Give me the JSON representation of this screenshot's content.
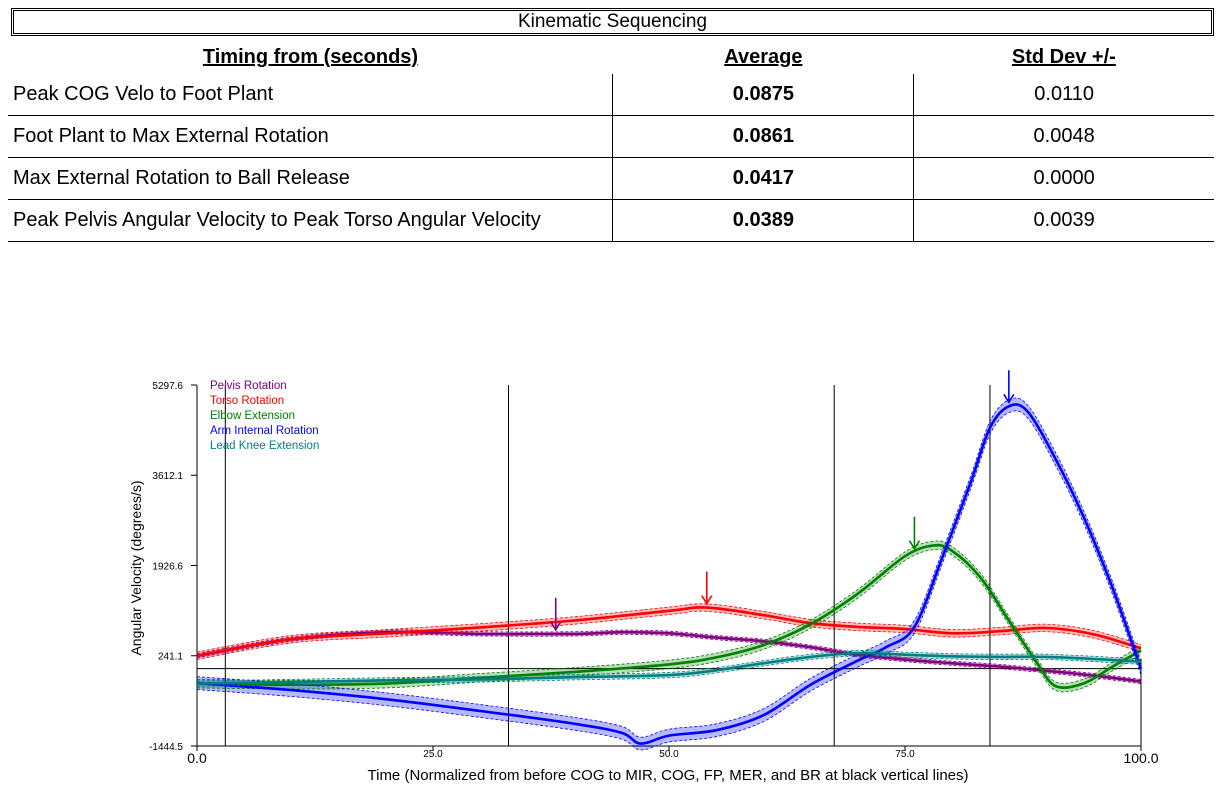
{
  "table": {
    "title": "Kinematic Sequencing",
    "headers": [
      "Timing from (seconds)",
      "Average",
      "Std Dev +/-"
    ],
    "rows": [
      {
        "label": "Peak COG Velo to Foot Plant",
        "average": "0.0875",
        "std": "0.0110"
      },
      {
        "label": "Foot Plant to Max External Rotation",
        "average": "0.0861",
        "std": "0.0048"
      },
      {
        "label": "Max External Rotation to Ball Release",
        "average": "0.0417",
        "std": "0.0000"
      },
      {
        "label": "Peak Pelvis Angular Velocity to Peak Torso Angular Velocity",
        "average": "0.0389",
        "std": "0.0039"
      }
    ]
  },
  "chart_data": {
    "type": "line",
    "xlabel": "Time (Normalized from before COG to MIR, COG, FP, MER, and BR at black vertical lines)",
    "ylabel": "Angular Velocity (degrees/s)",
    "xlim": [
      0,
      100
    ],
    "ylim": [
      -1444.5,
      5297.6
    ],
    "x_tick_labels": [
      "0.0",
      "25.0",
      "50.0",
      "75.0",
      "100.0"
    ],
    "x_tick_values": [
      0,
      25,
      50,
      75,
      100
    ],
    "y_tick_labels": [
      "5297.6",
      "3612.1",
      "1926.6",
      "241.1",
      "-1444.5"
    ],
    "y_tick_values": [
      5297.6,
      3612.1,
      1926.6,
      241.1,
      -1444.5
    ],
    "reference_hline": 0,
    "event_lines_x": [
      3,
      33,
      67.5,
      84
    ],
    "legend_position": "top-left",
    "series": [
      {
        "name": "Pelvis Rotation",
        "color": "#800080",
        "band": 40,
        "x": [
          0,
          10,
          20,
          30,
          40,
          45,
          50,
          55,
          60,
          65,
          70,
          75,
          80,
          85,
          90,
          95,
          100
        ],
        "values": [
          241,
          550,
          680,
          650,
          650,
          680,
          660,
          580,
          510,
          400,
          260,
          170,
          100,
          40,
          -40,
          -130,
          -240
        ],
        "peak_arrow_x": 38
      },
      {
        "name": "Torso Rotation",
        "color": "#ff0000",
        "band": 70,
        "x": [
          0,
          10,
          20,
          30,
          40,
          50,
          54,
          60,
          65,
          70,
          75,
          80,
          85,
          90,
          95,
          100
        ],
        "values": [
          241,
          550,
          660,
          770,
          900,
          1080,
          1140,
          1000,
          850,
          780,
          740,
          660,
          700,
          760,
          640,
          380
        ],
        "peak_arrow_x": 54
      },
      {
        "name": "Elbow Extension",
        "color": "#008000",
        "band": 80,
        "x": [
          0,
          10,
          20,
          30,
          40,
          50,
          55,
          60,
          65,
          70,
          75,
          78,
          80,
          83,
          86,
          89,
          91,
          94,
          97,
          100
        ],
        "values": [
          -280,
          -300,
          -280,
          -170,
          -60,
          80,
          210,
          440,
          830,
          1400,
          2100,
          2300,
          2200,
          1700,
          900,
          100,
          -330,
          -270,
          40,
          340
        ],
        "peak_arrow_x": 76
      },
      {
        "name": "Arm Internal Rotation",
        "color": "#0000ff",
        "band": 120,
        "x": [
          0,
          10,
          20,
          30,
          40,
          45,
          47,
          50,
          55,
          60,
          65,
          70,
          73,
          76,
          79,
          82,
          84,
          86,
          88,
          91,
          94,
          97,
          100
        ],
        "values": [
          -270,
          -400,
          -570,
          -790,
          -1030,
          -1200,
          -1400,
          -1250,
          -1150,
          -870,
          -300,
          150,
          400,
          780,
          2100,
          3500,
          4500,
          4900,
          4800,
          3900,
          2800,
          1500,
          0
        ],
        "peak_arrow_x": 86
      },
      {
        "name": "Lead Knee Extension",
        "color": "#008080",
        "band": 50,
        "x": [
          0,
          10,
          20,
          30,
          40,
          50,
          55,
          60,
          65,
          70,
          75,
          80,
          85,
          90,
          95,
          100
        ],
        "values": [
          -280,
          -250,
          -220,
          -200,
          -160,
          -120,
          -30,
          100,
          220,
          290,
          260,
          230,
          220,
          220,
          180,
          130
        ]
      }
    ]
  }
}
